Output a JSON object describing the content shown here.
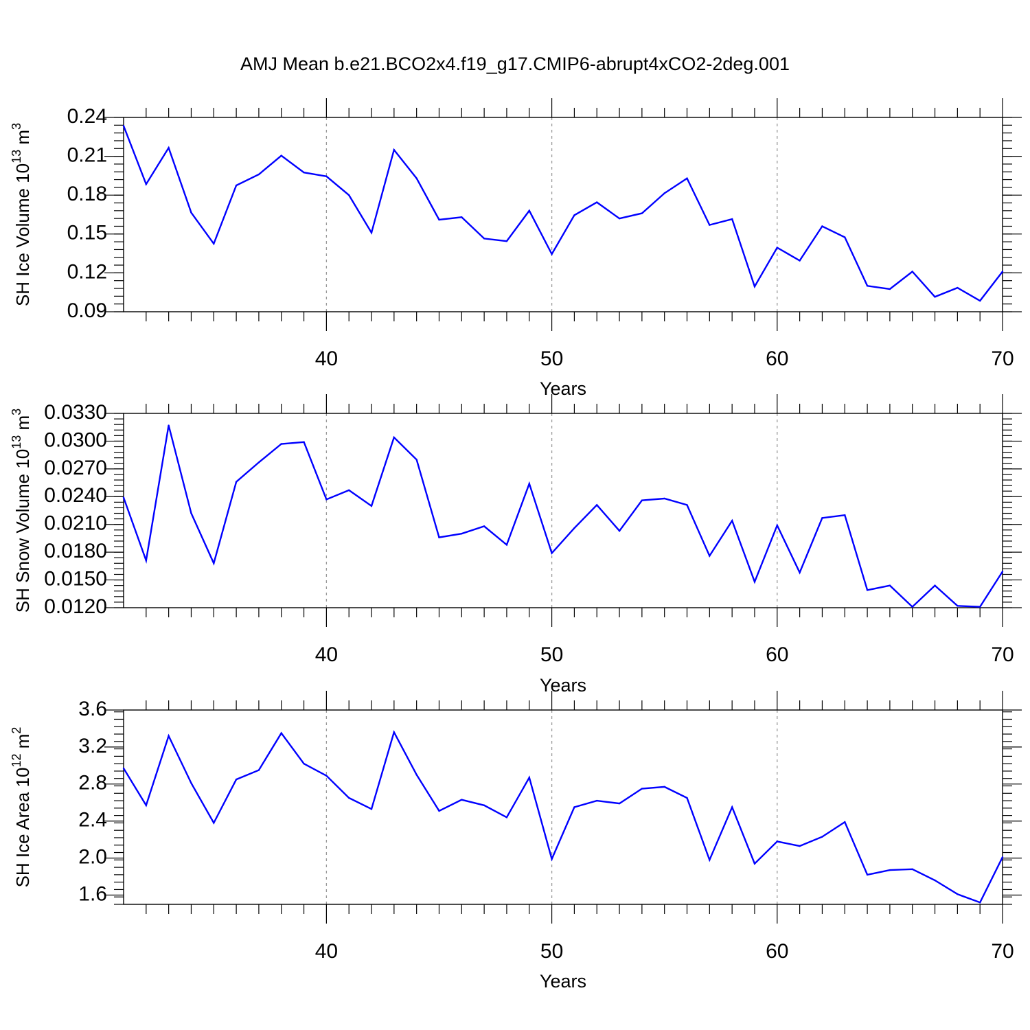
{
  "title": "AMJ Mean b.e21.BCO2x4.f19_g17.CMIP6-abrupt4xCO2-2deg.001",
  "chart_data": [
    {
      "type": "line",
      "xlabel": "Years",
      "ylabel": "SH Ice Volume 10",
      "ylabel_sup": "13",
      "ylabel_unit": " m",
      "ylabel_unit_sup": "3",
      "xlim": [
        31,
        70
      ],
      "ylim": [
        0.09,
        0.24
      ],
      "xticks": [
        40,
        50,
        60,
        70
      ],
      "yticks": [
        "0.09",
        "0.12",
        "0.15",
        "0.18",
        "0.21",
        "0.24"
      ],
      "grid_x": [
        40,
        50,
        60
      ],
      "series_color": "#0000ff",
      "x": [
        31,
        32,
        33,
        34,
        35,
        36,
        37,
        38,
        39,
        40,
        41,
        42,
        43,
        44,
        45,
        46,
        47,
        48,
        49,
        50,
        51,
        52,
        53,
        54,
        55,
        56,
        57,
        58,
        59,
        60,
        61,
        62,
        63,
        64,
        65,
        66,
        67,
        68,
        69,
        70
      ],
      "values": [
        0.2335,
        0.1885,
        0.2165,
        0.1665,
        0.1425,
        0.1875,
        0.196,
        0.2105,
        0.1975,
        0.1945,
        0.18,
        0.151,
        0.215,
        0.193,
        0.161,
        0.163,
        0.1465,
        0.1445,
        0.168,
        0.1345,
        0.1645,
        0.1745,
        0.162,
        0.166,
        0.1815,
        0.193,
        0.157,
        0.1615,
        0.1095,
        0.1395,
        0.1295,
        0.156,
        0.1475,
        0.11,
        0.1075,
        0.121,
        0.1015,
        0.1085,
        0.0985,
        0.121
      ]
    },
    {
      "type": "line",
      "xlabel": "Years",
      "ylabel": "SH Snow Volume 10",
      "ylabel_sup": "13",
      "ylabel_unit": " m",
      "ylabel_unit_sup": "3",
      "xlim": [
        31,
        70
      ],
      "ylim": [
        0.012,
        0.033
      ],
      "xticks": [
        40,
        50,
        60,
        70
      ],
      "yticks": [
        "0.0120",
        "0.0150",
        "0.0180",
        "0.0210",
        "0.0240",
        "0.0270",
        "0.0300",
        "0.0330"
      ],
      "grid_x": [
        40,
        50,
        60
      ],
      "series_color": "#0000ff",
      "x": [
        31,
        32,
        33,
        34,
        35,
        36,
        37,
        38,
        39,
        40,
        41,
        42,
        43,
        44,
        45,
        46,
        47,
        48,
        49,
        50,
        51,
        52,
        53,
        54,
        55,
        56,
        57,
        58,
        59,
        60,
        61,
        62,
        63,
        64,
        65,
        66,
        67,
        68,
        69,
        70
      ],
      "values": [
        0.0239,
        0.0171,
        0.0317,
        0.0222,
        0.0168,
        0.0256,
        0.0277,
        0.0297,
        0.0299,
        0.0237,
        0.0247,
        0.023,
        0.0304,
        0.028,
        0.0196,
        0.02,
        0.0208,
        0.0188,
        0.0254,
        0.0179,
        0.0206,
        0.0231,
        0.0203,
        0.0236,
        0.0238,
        0.0231,
        0.0176,
        0.0214,
        0.0148,
        0.0209,
        0.0158,
        0.0217,
        0.022,
        0.0139,
        0.0144,
        0.0121,
        0.0144,
        0.0122,
        0.0121,
        0.0159
      ]
    },
    {
      "type": "line",
      "xlabel": "Years",
      "ylabel": "SH Ice Area 10",
      "ylabel_sup": "12",
      "ylabel_unit": " m",
      "ylabel_unit_sup": "2",
      "xlim": [
        31,
        70
      ],
      "ylim": [
        1.5,
        3.6
      ],
      "xticks": [
        40,
        50,
        60,
        70
      ],
      "yticks": [
        "1.6",
        "2.0",
        "2.4",
        "2.8",
        "3.2",
        "3.6"
      ],
      "grid_x": [
        40,
        50,
        60
      ],
      "series_color": "#0000ff",
      "x": [
        31,
        32,
        33,
        34,
        35,
        36,
        37,
        38,
        39,
        40,
        41,
        42,
        43,
        44,
        45,
        46,
        47,
        48,
        49,
        50,
        51,
        52,
        53,
        54,
        55,
        56,
        57,
        58,
        59,
        60,
        61,
        62,
        63,
        64,
        65,
        66,
        67,
        68,
        69,
        70
      ],
      "values": [
        2.97,
        2.57,
        3.32,
        2.81,
        2.38,
        2.85,
        2.95,
        3.35,
        3.02,
        2.89,
        2.65,
        2.53,
        3.36,
        2.9,
        2.51,
        2.63,
        2.57,
        2.44,
        2.87,
        1.99,
        2.55,
        2.62,
        2.59,
        2.75,
        2.77,
        2.65,
        1.98,
        2.55,
        1.94,
        2.18,
        2.13,
        2.23,
        2.39,
        1.82,
        1.87,
        1.88,
        1.76,
        1.61,
        1.52,
        2.01
      ]
    }
  ]
}
